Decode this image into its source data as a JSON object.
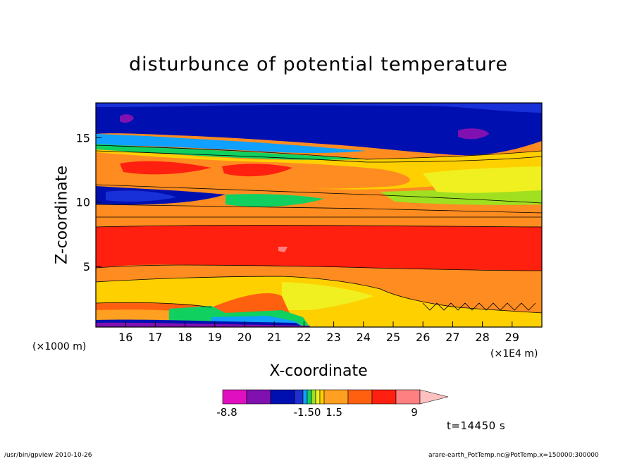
{
  "chart_data": {
    "type": "heatmap",
    "title": "disturbunce of potential temperature",
    "xlabel": "X-coordinate",
    "ylabel": "Z-coordinate",
    "x_unit_left": "(×1000 m)",
    "x_unit_right": "(×1E4 m)",
    "x_ticks": [
      "16",
      "17",
      "18",
      "19",
      "20",
      "21",
      "22",
      "23",
      "24",
      "25",
      "26",
      "27",
      "28",
      "29"
    ],
    "x_range": [
      15,
      30
    ],
    "y_ticks": [
      "5",
      "10",
      "15"
    ],
    "y_range": [
      0.3,
      17.7
    ],
    "colorbar": {
      "colors": [
        "#e010c0",
        "#8010b0",
        "#0010b0",
        "#2030d0",
        "#10a0ff",
        "#10d060",
        "#a0e020",
        "#f0f020",
        "#ffd000",
        "#ffa020",
        "#ff6010",
        "#ff2010",
        "#ff8080",
        "#ffc0c0"
      ],
      "labels": [
        "-8.8",
        "-1.50",
        "1.5",
        "9"
      ]
    },
    "time_label": "t=14450 s"
  },
  "footer": {
    "left": "/usr/bin/gpview   2010-10-26",
    "right": "arare-earth_PotTemp.nc@PotTemp,x=150000:300000"
  }
}
